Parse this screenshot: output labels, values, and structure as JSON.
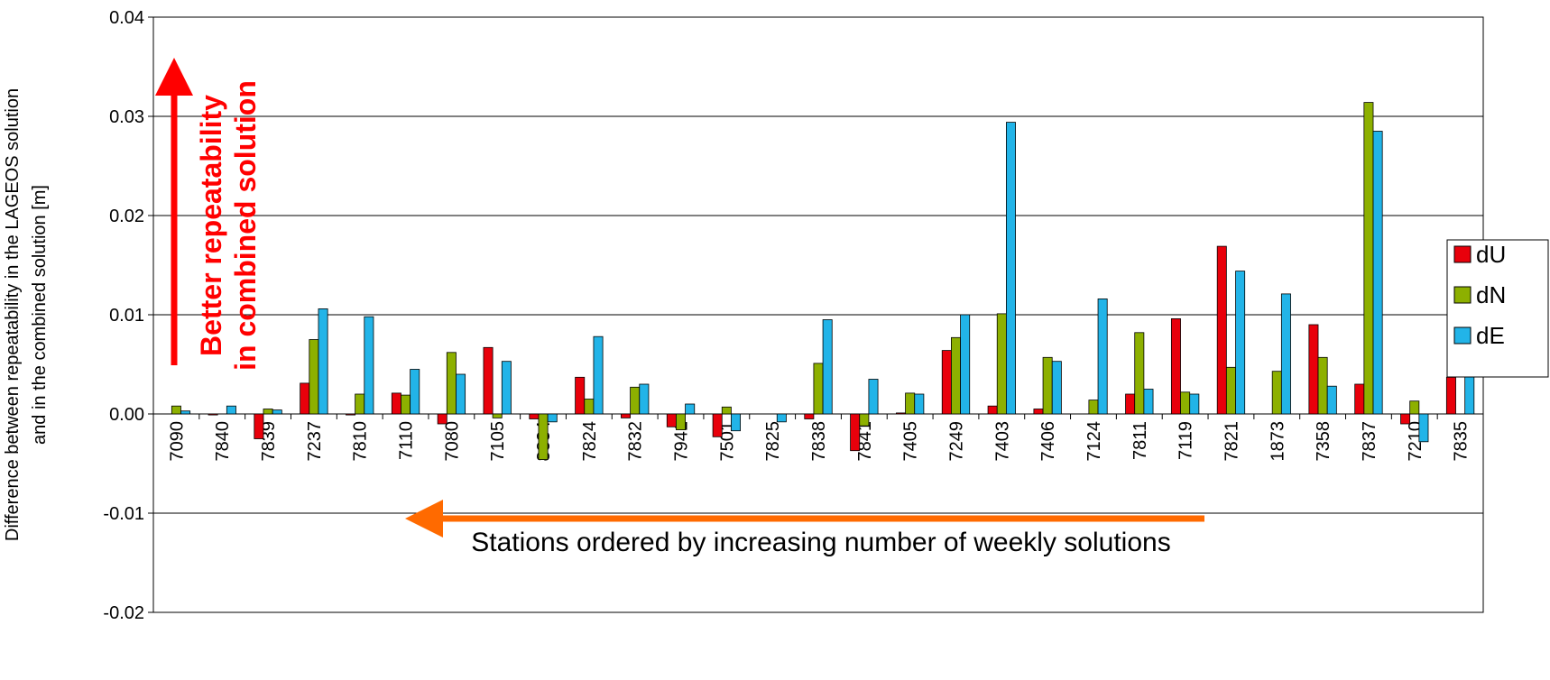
{
  "chart_data": {
    "type": "bar",
    "y_label": [
      "Difference between repeatability in the LAGEOS solution",
      "and in the combined solution [m]"
    ],
    "annotations": [
      {
        "text": [
          "Better repeatability",
          "in combined solution"
        ],
        "color": "#ff0000"
      },
      {
        "text": [
          "Stations ordered by increasing number of weekly solutions"
        ],
        "color": "#ff8c00"
      }
    ],
    "categories": [
      "7090",
      "7840",
      "7839",
      "7237",
      "7810",
      "7110",
      "7080",
      "7105",
      "8834",
      "7824",
      "7832",
      "7941",
      "7501",
      "7825",
      "7838",
      "7841",
      "7405",
      "7249",
      "7403",
      "7406",
      "7124",
      "7811",
      "7119",
      "7821",
      "1873",
      "7358",
      "7837",
      "7210",
      "7835"
    ],
    "series": [
      {
        "name": "dU",
        "color": "#e8000b",
        "values": [
          0,
          -0.0001,
          -0.0025,
          0.0031,
          -0.0001,
          0.0021,
          -0.001,
          0.0067,
          -0.0005,
          0.0037,
          -0.0004,
          -0.0013,
          -0.0023,
          0,
          -0.0005,
          -0.0037,
          0.0001,
          0.0064,
          0.0008,
          0.0005,
          0,
          0.002,
          0.0096,
          0.0169,
          0,
          0.009,
          0.003,
          -0.001,
          0.0037
        ]
      },
      {
        "name": "dN",
        "color": "#8db000",
        "values": [
          0.0008,
          0,
          0.0005,
          0.0075,
          0.002,
          0.0019,
          0.0062,
          -0.0004,
          -0.0046,
          0.0015,
          0.0027,
          -0.0016,
          0.0007,
          0,
          0.0051,
          -0.0012,
          0.0021,
          0.0077,
          0.0101,
          0.0057,
          0.0014,
          0.0082,
          0.0022,
          0.0047,
          0.0043,
          0.0057,
          0.0314,
          0.0013,
          0
        ]
      },
      {
        "name": "dE",
        "color": "#22b4e8",
        "values": [
          0.0003,
          0.0008,
          0.0004,
          0.0106,
          0.0098,
          0.0045,
          0.004,
          0.0053,
          -0.0008,
          0.0078,
          0.003,
          0.001,
          -0.0017,
          -0.0008,
          0.0095,
          0.0035,
          0.002,
          0.01,
          0.0294,
          0.0053,
          0.0116,
          0.0025,
          0.002,
          0.0144,
          0.0121,
          0.0028,
          0.0285,
          -0.0028,
          0.0062
        ]
      }
    ],
    "ylim": [
      -0.02,
      0.04
    ],
    "yticks": [
      -0.02,
      -0.01,
      {
        "value": 0,
        "label": "0.00"
      },
      0.01,
      0.02,
      0.03,
      0.04
    ],
    "grid": true
  }
}
